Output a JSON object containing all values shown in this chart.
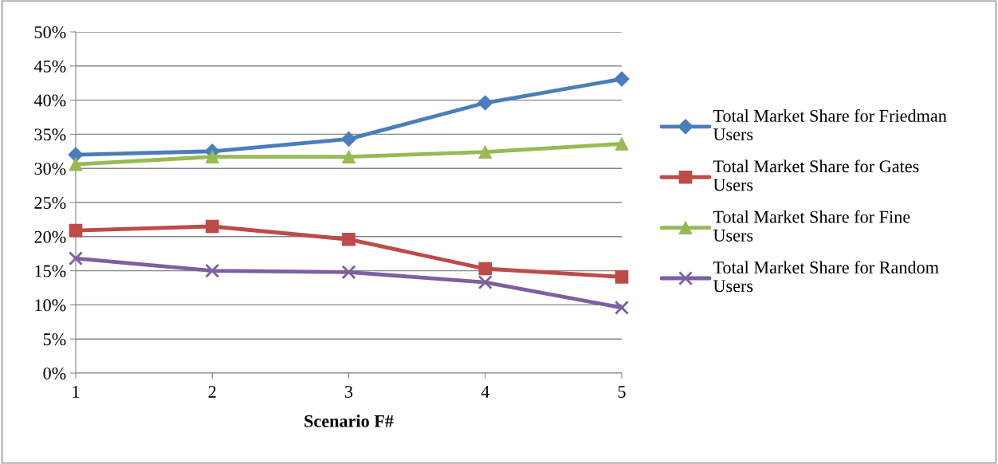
{
  "chart_data": {
    "type": "line",
    "xlabel": "Scenario F#",
    "x": [
      1,
      2,
      3,
      4,
      5
    ],
    "xlim": [
      1,
      5
    ],
    "xticks": [
      1,
      2,
      3,
      4,
      5
    ],
    "ylim": [
      0,
      0.5
    ],
    "yticks": [
      {
        "value": 0,
        "label": "0%"
      },
      {
        "value": 0.05,
        "label": "5%"
      },
      {
        "value": 0.1,
        "label": "10%"
      },
      {
        "value": 0.15,
        "label": "15%"
      },
      {
        "value": 0.2,
        "label": "20%"
      },
      {
        "value": 0.25,
        "label": "25%"
      },
      {
        "value": 0.3,
        "label": "30%"
      },
      {
        "value": 0.35,
        "label": "35%"
      },
      {
        "value": 0.4,
        "label": "40%"
      },
      {
        "value": 0.45,
        "label": "45%"
      },
      {
        "value": 0.5,
        "label": "50%"
      }
    ],
    "grid": "y",
    "legend": "right",
    "series": [
      {
        "name": "Total Market Share for Friedman Users",
        "color": "#4a7ebb",
        "marker": "diamond",
        "values": [
          0.32,
          0.325,
          0.343,
          0.396,
          0.431
        ]
      },
      {
        "name": "Total Market Share for Gates Users",
        "color": "#be4b48",
        "marker": "square",
        "values": [
          0.209,
          0.215,
          0.196,
          0.153,
          0.141
        ]
      },
      {
        "name": "Total Market Share for Fine Users",
        "color": "#98b954",
        "marker": "triangle",
        "values": [
          0.306,
          0.317,
          0.317,
          0.324,
          0.336
        ]
      },
      {
        "name": "Total Market Share for Random Users",
        "color": "#7d60a0",
        "marker": "cross",
        "values": [
          0.168,
          0.15,
          0.148,
          0.133,
          0.096
        ]
      }
    ]
  }
}
